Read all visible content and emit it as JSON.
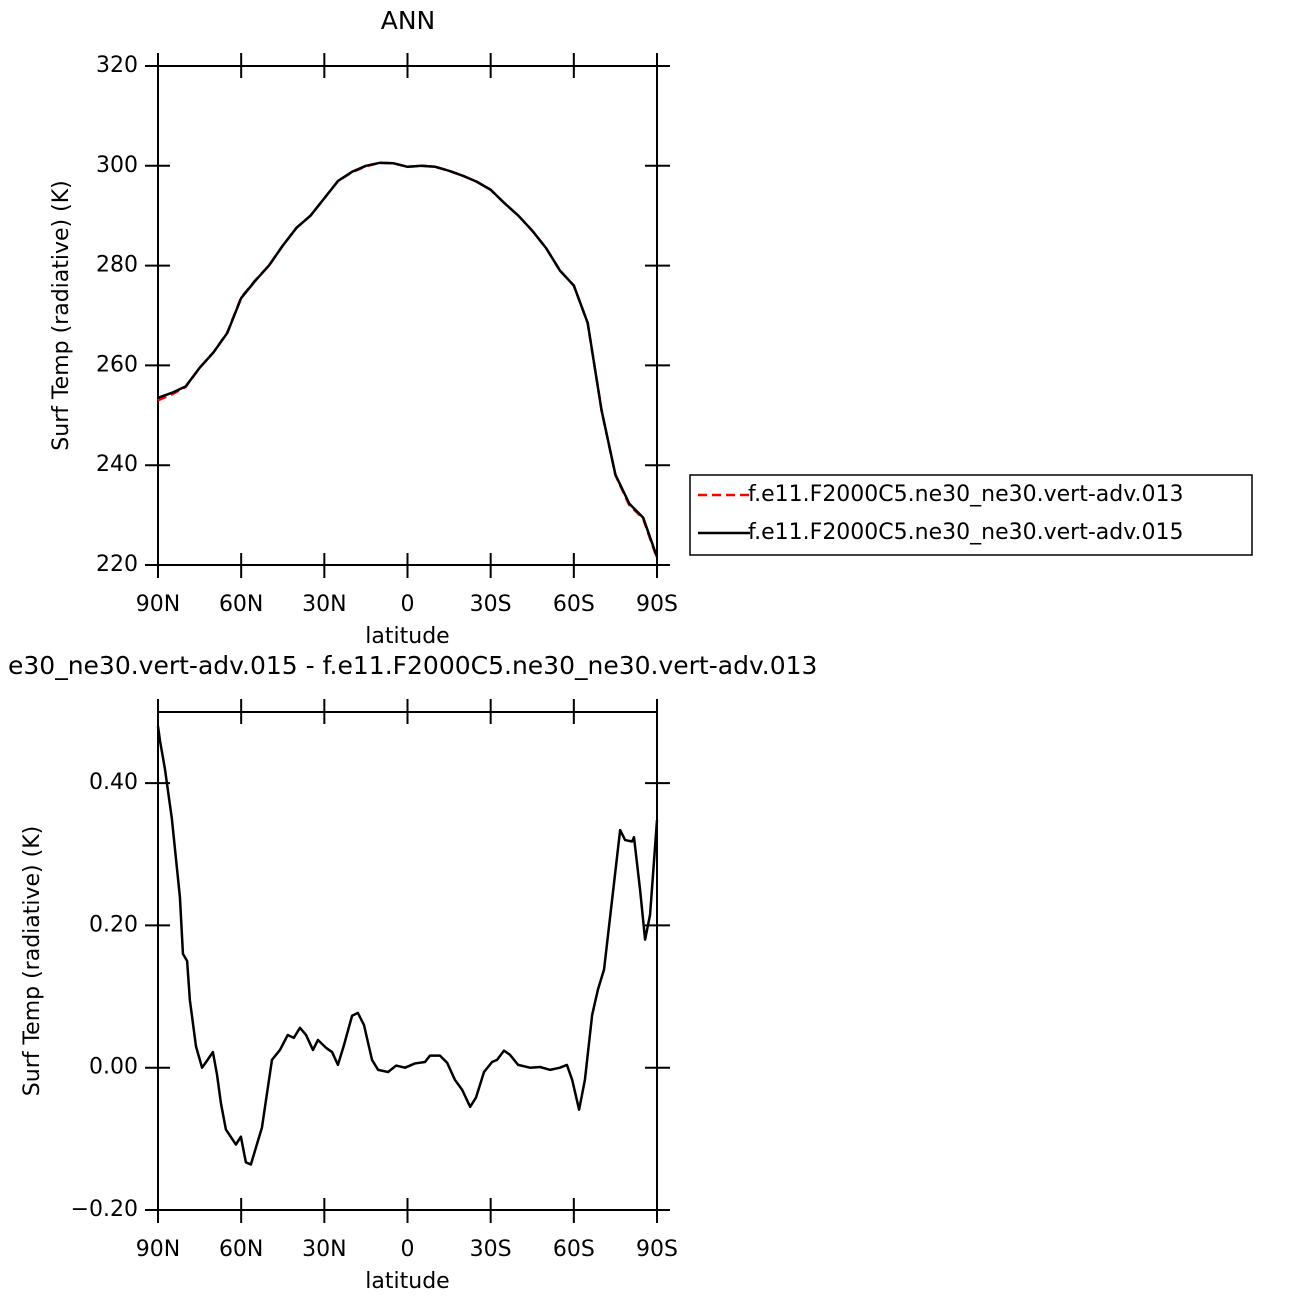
{
  "chart_data": [
    {
      "type": "line",
      "title": "ANN",
      "xlabel": "latitude",
      "ylabel": "Surf Temp (radiative) (K)",
      "xlim": [
        90,
        -90
      ],
      "ylim": [
        220,
        320
      ],
      "xticks": [
        {
          "value": 90,
          "label": "90N"
        },
        {
          "value": 60,
          "label": "60N"
        },
        {
          "value": 30,
          "label": "30N"
        },
        0,
        {
          "value": -30,
          "label": "30S"
        },
        {
          "value": -60,
          "label": "60S"
        },
        {
          "value": -90,
          "label": "90S"
        }
      ],
      "yticks": [
        220,
        240,
        260,
        280,
        300,
        320
      ],
      "legend": "right",
      "x": [
        90,
        85,
        80,
        75,
        70,
        65,
        60,
        55,
        50,
        45,
        40,
        35,
        30,
        25,
        20,
        15,
        10,
        5,
        0,
        -5,
        -10,
        -15,
        -20,
        -25,
        -30,
        -35,
        -40,
        -45,
        -50,
        -55,
        -60,
        -65,
        -70,
        -75,
        -80,
        -85,
        -90
      ],
      "series": [
        {
          "name": "f.e11.F2000C5.ne30_ne30.vert-adv.013",
          "color": "#ff0000",
          "line_style": "dashed",
          "values": [
            253.0,
            254.2,
            255.7,
            259.5,
            262.6,
            266.6,
            273.6,
            277.0,
            280.0,
            284.0,
            287.6,
            290.0,
            293.5,
            297.0,
            298.7,
            299.9,
            300.6,
            300.5,
            299.8,
            300.0,
            299.8,
            299.0,
            298.0,
            296.8,
            295.2,
            292.5,
            290.0,
            287.0,
            283.5,
            279.0,
            276.0,
            268.5,
            251.0,
            238.0,
            232.0,
            229.3,
            221.3
          ]
        },
        {
          "name": "f.e11.F2000C5.ne30_ne30.vert-adv.015",
          "color": "#000000",
          "line_style": "solid",
          "values": [
            253.5,
            254.5,
            255.8,
            259.5,
            262.6,
            266.5,
            273.5,
            276.9,
            280.0,
            284.0,
            287.6,
            290.0,
            293.5,
            297.0,
            298.8,
            300.0,
            300.6,
            300.5,
            299.8,
            300.0,
            299.8,
            299.0,
            298.0,
            296.8,
            295.2,
            292.5,
            290.0,
            287.0,
            283.5,
            279.0,
            276.0,
            268.5,
            251.0,
            238.1,
            232.3,
            229.5,
            221.6
          ]
        }
      ]
    },
    {
      "type": "line",
      "title": "e30_ne30.vert-adv.015 - f.e11.F2000C5.ne30_ne30.vert-adv.013",
      "xlabel": "latitude",
      "ylabel": "Surf Temp (radiative) (K)",
      "xlim": [
        90,
        -90
      ],
      "ylim": [
        -0.2,
        0.5
      ],
      "xticks": [
        {
          "value": 90,
          "label": "90N"
        },
        {
          "value": 60,
          "label": "60N"
        },
        {
          "value": 30,
          "label": "30N"
        },
        0,
        {
          "value": -30,
          "label": "30S"
        },
        {
          "value": -60,
          "label": "60S"
        },
        {
          "value": -90,
          "label": "90S"
        }
      ],
      "yticks": [
        {
          "value": -0.2,
          "label": "−0.20"
        },
        {
          "value": 0,
          "label": "0.00"
        },
        {
          "value": 0.2,
          "label": "0.20"
        },
        {
          "value": 0.4,
          "label": "0.40"
        }
      ],
      "x": [
        90,
        89.3,
        87.5,
        85,
        82.1,
        81,
        79.5,
        78.5,
        76.3,
        74.1,
        72.3,
        70.2,
        68.7,
        67.3,
        65.5,
        61.9,
        60.1,
        58.3,
        56.5,
        52.5,
        48.9,
        46,
        43.2,
        41,
        38.8,
        36.6,
        34.1,
        32.3,
        29.4,
        27.2,
        25.1,
        22.9,
        20,
        17.9,
        15.7,
        12.8,
        10.6,
        7,
        4.1,
        0.9,
        -2.7,
        -6.3,
        -8.1,
        -11.7,
        -14.3,
        -17.1,
        -19.7,
        -22.6,
        -24.7,
        -27.6,
        -30.5,
        -32.3,
        -34.8,
        -37,
        -39.9,
        -44.2,
        -47.8,
        -51.4,
        -55,
        -57.5,
        -59.4,
        -61.9,
        -64,
        -66.6,
        -68.7,
        -70.9,
        -73.8,
        -76.7,
        -78.5,
        -81,
        -81.7,
        -83.9,
        -85.7,
        -87.5,
        -90
      ],
      "series": [
        {
          "color": "#000000",
          "line_style": "solid",
          "values": [
            0.48,
            0.46,
            0.42,
            0.35,
            0.24,
            0.16,
            0.15,
            0.095,
            0.03,
            0.0,
            0.01,
            0.022,
            -0.01,
            -0.05,
            -0.087,
            -0.108,
            -0.097,
            -0.133,
            -0.136,
            -0.084,
            0.011,
            0.025,
            0.046,
            0.042,
            0.056,
            0.046,
            0.025,
            0.039,
            0.028,
            0.022,
            0.004,
            0.032,
            0.073,
            0.077,
            0.06,
            0.011,
            -0.003,
            -0.006,
            0.003,
            0.0,
            0.006,
            0.008,
            0.017,
            0.017,
            0.007,
            -0.017,
            -0.031,
            -0.055,
            -0.042,
            -0.006,
            0.008,
            0.011,
            0.024,
            0.018,
            0.004,
            0.0,
            0.001,
            -0.003,
            0.0,
            0.004,
            -0.017,
            -0.059,
            -0.017,
            0.074,
            0.11,
            0.138,
            0.236,
            0.334,
            0.32,
            0.318,
            0.324,
            0.25,
            0.18,
            0.215,
            0.348
          ]
        }
      ]
    }
  ]
}
